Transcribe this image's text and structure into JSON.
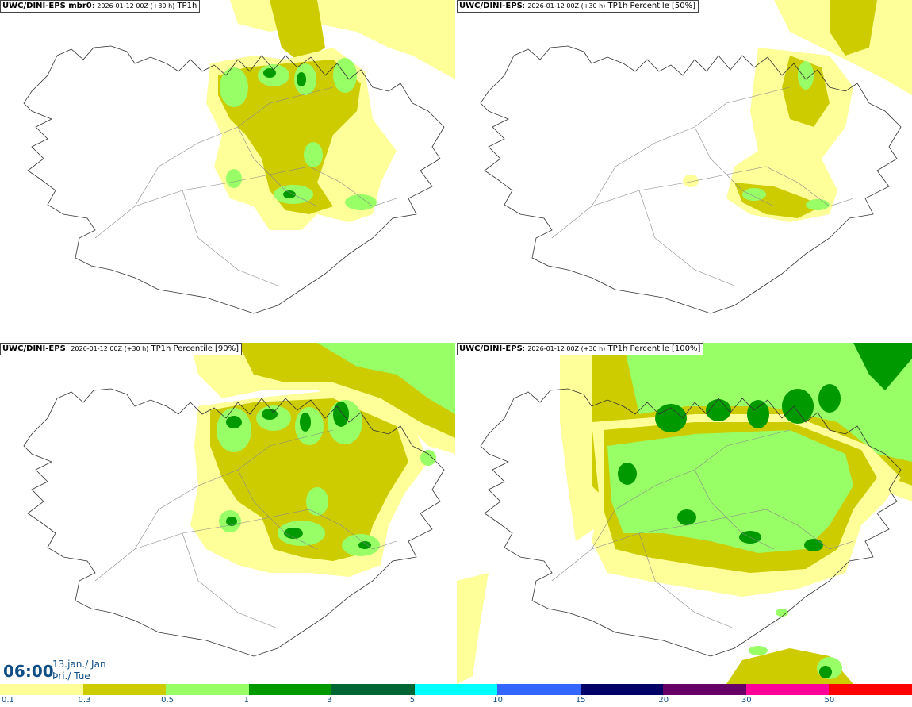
{
  "panels": [
    {
      "model": "UWC/DINI-EPS mbr0",
      "run": "2026-01-12 00Z (+30 h)",
      "field": "TP1h"
    },
    {
      "model": "UWC/DINI-EPS",
      "run": "2026-01-12 00Z (+30 h)",
      "field": "TP1h Percentile [50%]"
    },
    {
      "model": "UWC/DINI-EPS",
      "run": "2026-01-12 00Z (+30 h)",
      "field": "TP1h Percentile [90%]"
    },
    {
      "model": "UWC/DINI-EPS",
      "run": "2026-01-12 00Z (+30 h)",
      "field": "TP1h Percentile [100%]"
    }
  ],
  "valid": {
    "time": "06:00",
    "date_line1": "13.jan./ Jan",
    "date_line2": "Þri./ Tue"
  },
  "colorbar": {
    "colors": [
      "#ffff99",
      "#cccc00",
      "#99ff66",
      "#009900",
      "#006633",
      "#00ffff",
      "#3366ff",
      "#000066",
      "#660066",
      "#ff0099",
      "#ff0000"
    ],
    "labels": [
      "0.1",
      "0.3",
      "0.5",
      "1",
      "3",
      "5",
      "10",
      "15",
      "20",
      "30",
      "50"
    ]
  }
}
